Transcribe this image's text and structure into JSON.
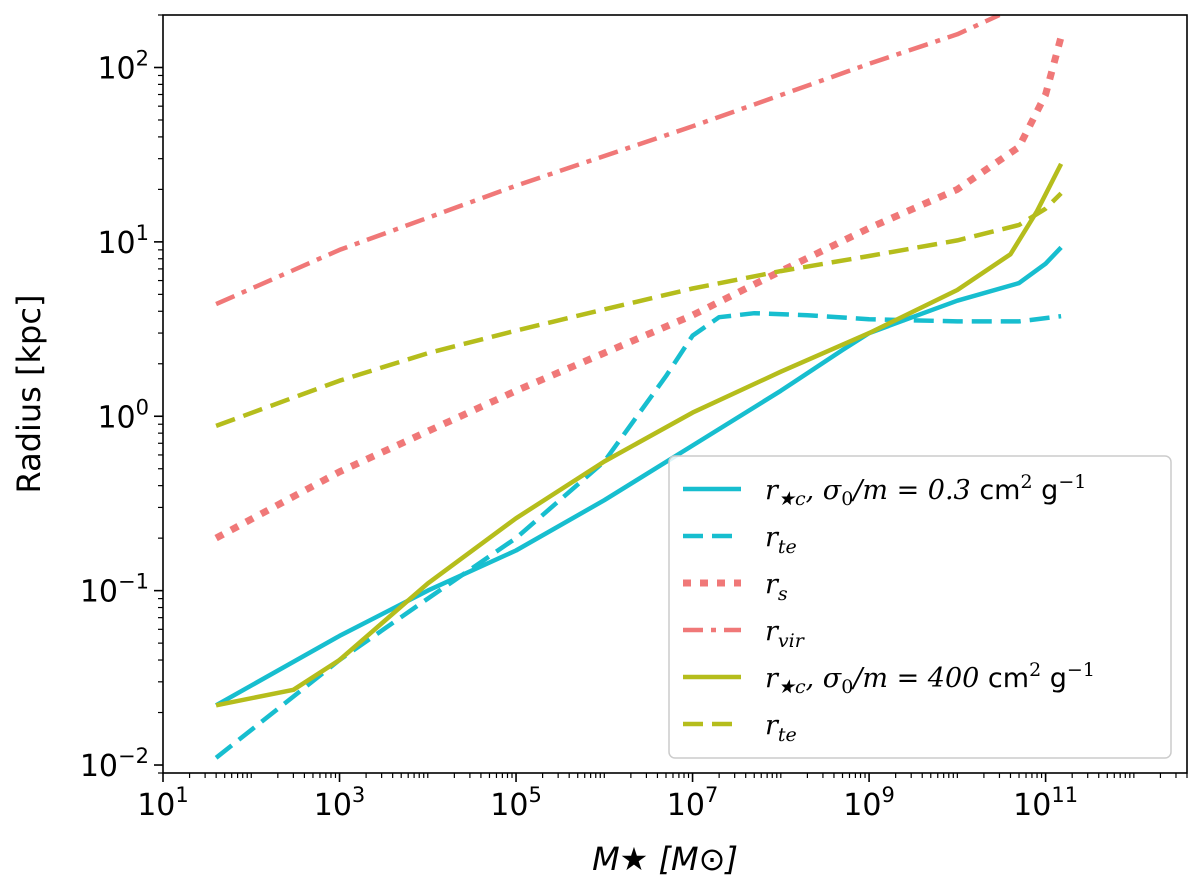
{
  "chart_data": {
    "type": "line",
    "title": "",
    "xlabel": "M★ [M⊙]",
    "ylabel": "Radius [kpc]",
    "xscale": "log",
    "yscale": "log",
    "xlim": [
      10,
      4000000000000
    ],
    "ylim": [
      0.009,
      200
    ],
    "x_ticks": [
      {
        "value": 10,
        "label_base": "10",
        "label_exp": "1"
      },
      {
        "value": 1000,
        "label_base": "10",
        "label_exp": "3"
      },
      {
        "value": 100000,
        "label_base": "10",
        "label_exp": "5"
      },
      {
        "value": 10000000,
        "label_base": "10",
        "label_exp": "7"
      },
      {
        "value": 1000000000,
        "label_base": "10",
        "label_exp": "9"
      },
      {
        "value": 100000000000,
        "label_base": "10",
        "label_exp": "11"
      }
    ],
    "y_ticks": [
      {
        "value": 0.01,
        "label_base": "10",
        "label_exp": "−2"
      },
      {
        "value": 0.1,
        "label_base": "10",
        "label_exp": "−1"
      },
      {
        "value": 1,
        "label_base": "10",
        "label_exp": "0"
      },
      {
        "value": 10,
        "label_base": "10",
        "label_exp": "1"
      },
      {
        "value": 100,
        "label_base": "10",
        "label_exp": "2"
      }
    ],
    "legend_position": "lower-right",
    "series": [
      {
        "name": "r★c, σ0/m = 0.3 cm2 g−1",
        "color": "#17becf",
        "style": "solid",
        "x": [
          40,
          1000,
          10000,
          100000,
          1000000,
          10000000,
          100000000,
          500000000,
          1000000000,
          10000000000,
          50000000000,
          100000000000,
          150000000000
        ],
        "y": [
          0.022,
          0.055,
          0.1,
          0.17,
          0.33,
          0.68,
          1.4,
          2.4,
          3.0,
          4.6,
          5.8,
          7.5,
          9.3
        ]
      },
      {
        "name": "r_te",
        "color": "#17becf",
        "style": "dashed",
        "x": [
          40,
          1000,
          10000,
          100000,
          1000000,
          5000000,
          10000000,
          20000000,
          50000000,
          200000000,
          1000000000,
          10000000000,
          50000000000,
          150000000000
        ],
        "y": [
          0.011,
          0.04,
          0.09,
          0.2,
          0.55,
          1.7,
          2.9,
          3.7,
          3.9,
          3.8,
          3.6,
          3.5,
          3.5,
          3.75
        ]
      },
      {
        "name": "r_s",
        "color": "#f07878",
        "style": "dotted",
        "x": [
          40,
          1000,
          100000,
          10000000,
          100000000,
          1000000000,
          10000000000,
          50000000000,
          100000000000,
          150000000000
        ],
        "y": [
          0.2,
          0.48,
          1.4,
          3.8,
          6.8,
          12,
          20,
          35,
          70,
          150
        ]
      },
      {
        "name": "r_vir",
        "color": "#f07878",
        "style": "dashdot",
        "x": [
          40,
          1000,
          100000,
          10000000,
          1000000000,
          10000000000,
          30000000000
        ],
        "y": [
          4.4,
          9.0,
          21,
          46,
          105,
          155,
          200
        ]
      },
      {
        "name": "r★c, σ0/m = 400 cm2 g−1",
        "color": "#b5bd1c",
        "style": "solid",
        "x": [
          40,
          300,
          1000,
          10000,
          100000,
          1000000,
          10000000,
          100000000,
          1000000000,
          10000000000,
          40000000000,
          80000000000,
          150000000000
        ],
        "y": [
          0.022,
          0.027,
          0.04,
          0.11,
          0.26,
          0.55,
          1.05,
          1.8,
          3.0,
          5.3,
          8.5,
          15,
          28
        ]
      },
      {
        "name": "r_te",
        "color": "#b5bd1c",
        "style": "dashed",
        "x": [
          40,
          1000,
          10000,
          100000,
          1000000,
          10000000,
          100000000,
          1000000000,
          10000000000,
          50000000000,
          100000000000,
          150000000000
        ],
        "y": [
          0.88,
          1.6,
          2.3,
          3.1,
          4.1,
          5.4,
          6.8,
          8.3,
          10.2,
          12.5,
          15.5,
          19
        ]
      }
    ]
  }
}
